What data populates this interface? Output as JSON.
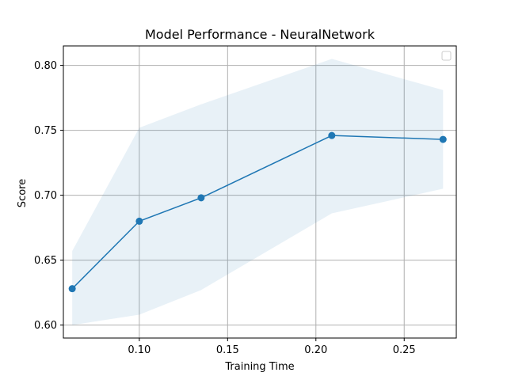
{
  "chart_data": {
    "type": "line",
    "title": "Model Performance - NeuralNetwork",
    "xlabel": "Training Time",
    "ylabel": "Score",
    "xlim": [
      0.057,
      0.2795
    ],
    "ylim": [
      0.59,
      0.815
    ],
    "x_ticks": [
      0.1,
      0.15,
      0.2,
      0.25
    ],
    "x_tick_labels": [
      "0.10",
      "0.15",
      "0.20",
      "0.25"
    ],
    "y_ticks": [
      0.6,
      0.65,
      0.7,
      0.75,
      0.8
    ],
    "y_tick_labels": [
      "0.60",
      "0.65",
      "0.70",
      "0.75",
      "0.80"
    ],
    "grid": true,
    "legend": {
      "placement": "top-right",
      "entries": []
    },
    "series": [
      {
        "x": [
          0.062,
          0.1,
          0.135,
          0.209,
          0.272
        ],
        "y": [
          0.628,
          0.68,
          0.698,
          0.746,
          0.743
        ],
        "lower": [
          0.6,
          0.608,
          0.627,
          0.686,
          0.705
        ],
        "upper": [
          0.657,
          0.752,
          0.77,
          0.805,
          0.781
        ],
        "color": "#1f77b4",
        "band_color": "#1f77b4"
      }
    ]
  }
}
